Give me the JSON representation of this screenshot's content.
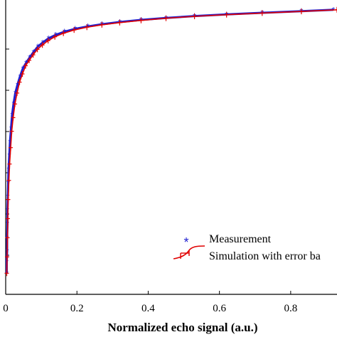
{
  "chart_data": {
    "type": "line",
    "xlabel": "Normalized echo signal (a.u.)",
    "xlim": [
      0,
      0.93
    ],
    "x_ticks": [
      0,
      0.2,
      0.4,
      0.6,
      0.8
    ],
    "x_tick_labels": [
      "0",
      "0.2",
      "0.4",
      "0.6",
      "0.8"
    ],
    "ylim": [
      0,
      1
    ],
    "legend_position": "bottom-right",
    "series": [
      {
        "name": "Measurement",
        "marker": "asterisk",
        "color": "#1f1fd0",
        "x": [
          0.003,
          0.003,
          0.004,
          0.004,
          0.005,
          0.005,
          0.006,
          0.007,
          0.008,
          0.01,
          0.012,
          0.015,
          0.018,
          0.022,
          0.027,
          0.033,
          0.04,
          0.048,
          0.057,
          0.067,
          0.078,
          0.09,
          0.104,
          0.12,
          0.14,
          0.165,
          0.195,
          0.23,
          0.27,
          0.32,
          0.38,
          0.45,
          0.53,
          0.62,
          0.72,
          0.83,
          0.92
        ],
        "y": [
          0.02,
          0.06,
          0.1,
          0.15,
          0.2,
          0.25,
          0.3,
          0.35,
          0.4,
          0.45,
          0.5,
          0.55,
          0.6,
          0.64,
          0.68,
          0.71,
          0.74,
          0.77,
          0.79,
          0.81,
          0.83,
          0.85,
          0.865,
          0.88,
          0.893,
          0.905,
          0.915,
          0.924,
          0.932,
          0.94,
          0.948,
          0.955,
          0.962,
          0.968,
          0.974,
          0.98,
          0.985
        ]
      },
      {
        "name": "Simulation with error ba",
        "color": "#e00000",
        "x": [
          0.003,
          0.004,
          0.005,
          0.006,
          0.007,
          0.009,
          0.011,
          0.014,
          0.017,
          0.021,
          0.026,
          0.032,
          0.039,
          0.047,
          0.056,
          0.066,
          0.077,
          0.089,
          0.103,
          0.119,
          0.138,
          0.162,
          0.192,
          0.228,
          0.27,
          0.32,
          0.38,
          0.45,
          0.53,
          0.62,
          0.72,
          0.83,
          0.93
        ],
        "y": [
          0.02,
          0.08,
          0.15,
          0.22,
          0.29,
          0.36,
          0.42,
          0.48,
          0.54,
          0.59,
          0.64,
          0.68,
          0.72,
          0.75,
          0.78,
          0.8,
          0.82,
          0.84,
          0.856,
          0.872,
          0.886,
          0.899,
          0.911,
          0.921,
          0.93,
          0.938,
          0.946,
          0.954,
          0.961,
          0.967,
          0.973,
          0.979,
          0.985
        ]
      }
    ]
  }
}
